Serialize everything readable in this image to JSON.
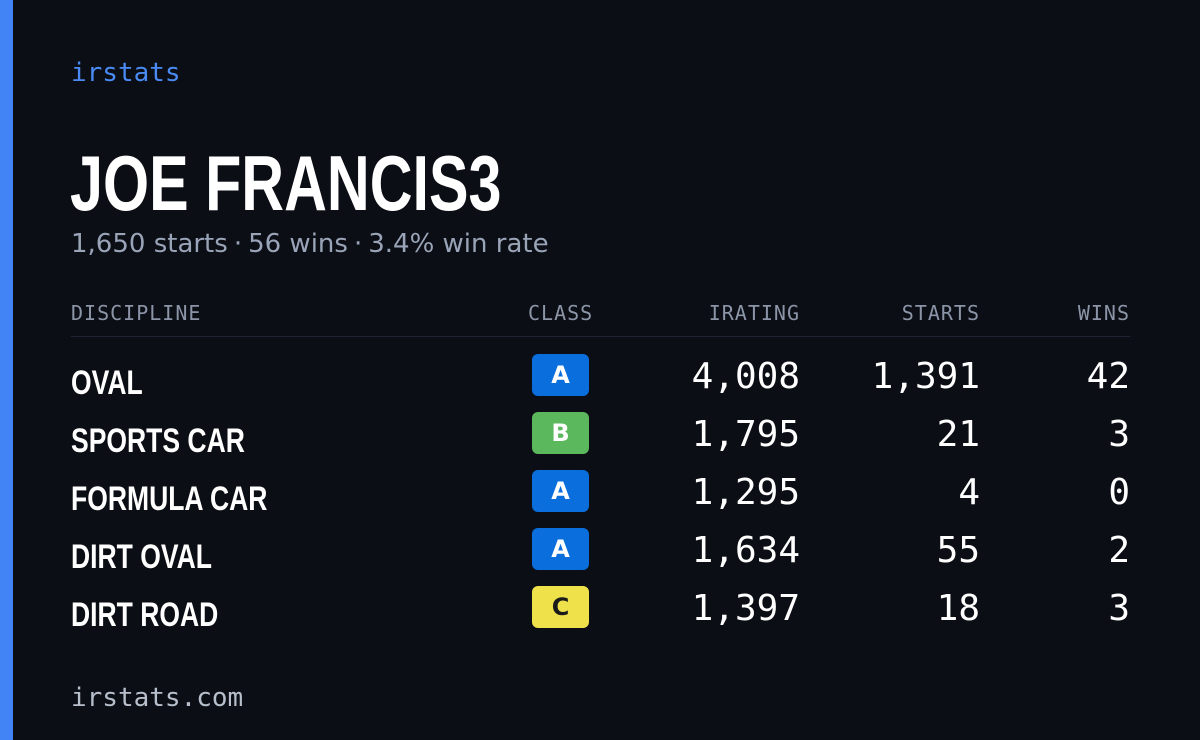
{
  "colors": {
    "background": "#0b0e14",
    "accent_bar": "#4284f5",
    "brand": "#4a8af4",
    "muted": "#9aa4b8",
    "class_A": "#0a6fdc",
    "class_B": "#5bb85c",
    "class_C": "#efe14a"
  },
  "brand": "irstats",
  "driver": {
    "name": "JOE FRANCIS3"
  },
  "summary": {
    "starts": "1,650 starts",
    "wins": "56 wins",
    "win_rate": "3.4% win rate",
    "separator": "·"
  },
  "table": {
    "headers": {
      "discipline": "DISCIPLINE",
      "class": "CLASS",
      "irating": "IRATING",
      "starts": "STARTS",
      "wins": "WINS"
    },
    "rows": [
      {
        "discipline": "OVAL",
        "class": "A",
        "class_color": "#0a6fdc",
        "class_text_color": "#ffffff",
        "irating": "4,008",
        "starts": "1,391",
        "wins": "42"
      },
      {
        "discipline": "SPORTS CAR",
        "class": "B",
        "class_color": "#5bb85c",
        "class_text_color": "#ffffff",
        "irating": "1,795",
        "starts": "21",
        "wins": "3"
      },
      {
        "discipline": "FORMULA CAR",
        "class": "A",
        "class_color": "#0a6fdc",
        "class_text_color": "#ffffff",
        "irating": "1,295",
        "starts": "4",
        "wins": "0"
      },
      {
        "discipline": "DIRT OVAL",
        "class": "A",
        "class_color": "#0a6fdc",
        "class_text_color": "#ffffff",
        "irating": "1,634",
        "starts": "55",
        "wins": "2"
      },
      {
        "discipline": "DIRT ROAD",
        "class": "C",
        "class_color": "#efe14a",
        "class_text_color": "#1a1a1a",
        "irating": "1,397",
        "starts": "18",
        "wins": "3"
      }
    ]
  },
  "footer": "irstats.com"
}
